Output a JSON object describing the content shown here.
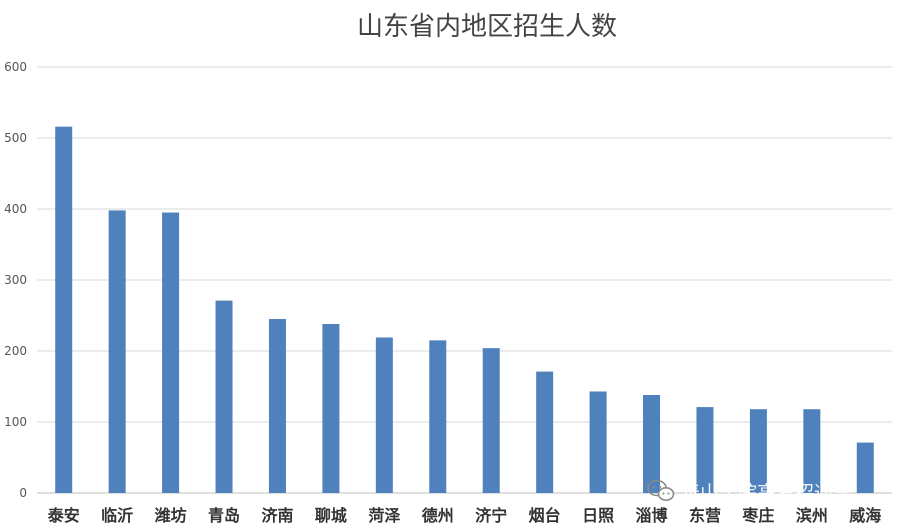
{
  "chart_data": {
    "type": "bar",
    "title": "山东省内地区招生人数",
    "categories": [
      "泰安",
      "临沂",
      "潍坊",
      "青岛",
      "济南",
      "聊城",
      "菏泽",
      "德州",
      "济宁",
      "烟台",
      "日照",
      "淄博",
      "东营",
      "枣庄",
      "滨州",
      "威海"
    ],
    "values": [
      516,
      398,
      395,
      271,
      245,
      238,
      219,
      215,
      204,
      171,
      143,
      138,
      121,
      118,
      118,
      71
    ],
    "ylim": [
      0,
      600
    ],
    "yticks": [
      0,
      100,
      200,
      300,
      400,
      500,
      600
    ],
    "grid": true,
    "bar_color": "#4f81bd",
    "grid_color": "#d9d9d9"
  },
  "watermark": {
    "text": "泰山学院高考招通车",
    "icon": "wechat-icon"
  }
}
